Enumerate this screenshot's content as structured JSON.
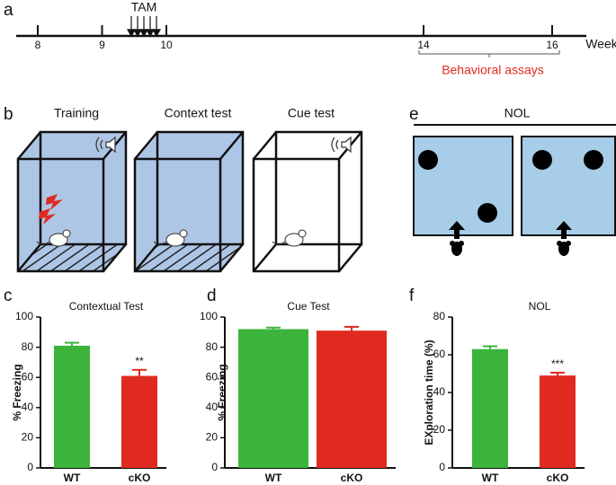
{
  "panel_labels": [
    "a",
    "b",
    "c",
    "d",
    "e",
    "f"
  ],
  "timeline": {
    "ticks": [
      8,
      9,
      10,
      14,
      16
    ],
    "unit": "Week",
    "tam_label": "TAM",
    "assay_label": "Behavioral assays"
  },
  "setup": {
    "titles": [
      "Training",
      "Context test",
      "Cue test"
    ],
    "nol_title": "NOL"
  },
  "chart_data": [
    {
      "type": "bar",
      "title": "Contextual Test",
      "y_label": "% Freezing",
      "categories": [
        "WT",
        "cKO"
      ],
      "values": [
        81,
        61
      ],
      "errors": [
        2,
        4
      ],
      "colors": [
        "#3cb43c",
        "#e02a20"
      ],
      "ylim": [
        0,
        100
      ],
      "yticks": [
        0,
        20,
        40,
        60,
        80,
        100
      ],
      "significance": "**"
    },
    {
      "type": "bar",
      "title": "Cue Test",
      "y_label": "% Freezing",
      "categories": [
        "WT",
        "cKO"
      ],
      "values": [
        92,
        91
      ],
      "errors": [
        1,
        2.5
      ],
      "colors": [
        "#3cb43c",
        "#e02a20"
      ],
      "ylim": [
        0,
        100
      ],
      "yticks": [
        0,
        20,
        40,
        60,
        80,
        100
      ]
    },
    {
      "type": "bar",
      "title": "NOL",
      "y_label": "EXploration time (%)",
      "categories": [
        "WT",
        "cKO"
      ],
      "values": [
        63,
        49
      ],
      "errors": [
        1.5,
        1.5
      ],
      "colors": [
        "#3cb43c",
        "#e02a20"
      ],
      "ylim": [
        0,
        80
      ],
      "yticks": [
        0,
        20,
        40,
        60,
        80
      ],
      "significance": "***"
    }
  ]
}
